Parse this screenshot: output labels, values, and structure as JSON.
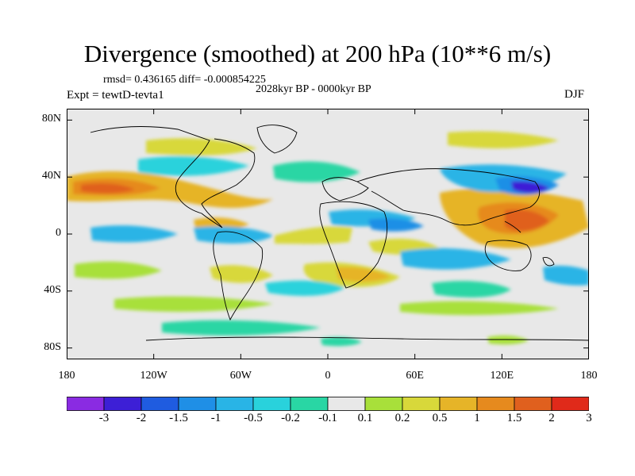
{
  "title": "Divergence (smoothed) at 200 hPa (10**6 m/s)",
  "stats": "rmsd= 0.436165 diff= -0.000854225",
  "period": "2028kyr BP - 0000kyr BP",
  "experiment": "Expt = tewtD-tevta1",
  "season": "DJF",
  "y_axis": {
    "labels": [
      "80N",
      "40N",
      "0",
      "40S",
      "80S"
    ],
    "values": [
      80,
      40,
      0,
      -40,
      -80
    ]
  },
  "x_axis": {
    "labels": [
      "180",
      "120W",
      "60W",
      "0",
      "60E",
      "120E",
      "180"
    ],
    "values": [
      -180,
      -120,
      -60,
      0,
      60,
      120,
      180
    ]
  },
  "colorbar": {
    "labels": [
      "-3",
      "-2",
      "-1.5",
      "-1",
      "-0.5",
      "-0.2",
      "-0.1",
      "0.1",
      "0.2",
      "0.5",
      "1",
      "1.5",
      "2",
      "3"
    ],
    "colors": [
      "#8a2be2",
      "#3d1fd6",
      "#1f5ce0",
      "#1f8fe6",
      "#29b4e6",
      "#29d2dc",
      "#29d6a4",
      "#e8e8e8",
      "#a8e03a",
      "#d8d83a",
      "#e6b428",
      "#e68a1e",
      "#e0601e",
      "#e02a1a"
    ]
  },
  "colors": {
    "neutral_fill": "#e8e8e8"
  }
}
